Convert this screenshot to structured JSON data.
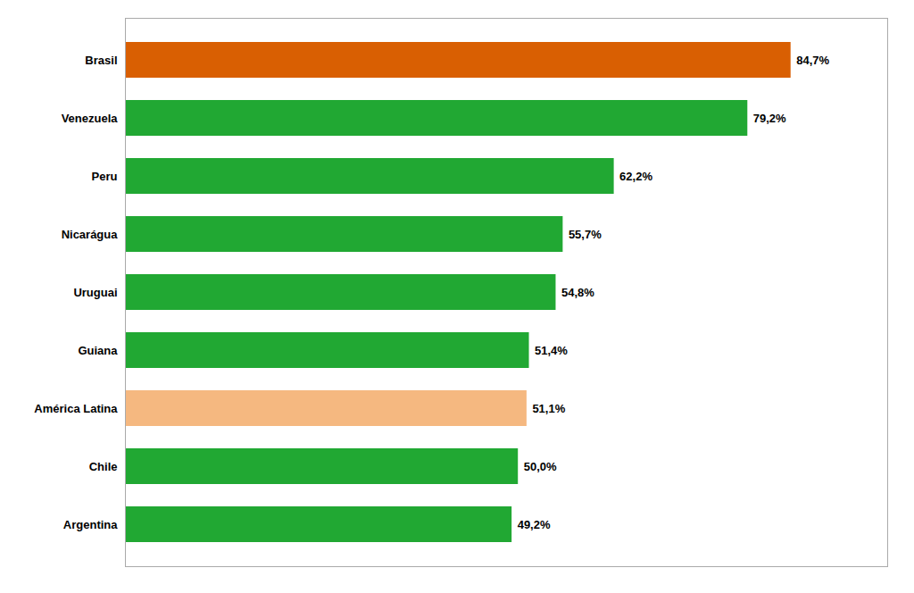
{
  "chart_data": {
    "type": "bar",
    "orientation": "horizontal",
    "categories": [
      "Argentina",
      "Chile",
      "América Latina",
      "Guiana",
      "Uruguai",
      "Nicarágua",
      "Peru",
      "Venezuela",
      "Brasil"
    ],
    "values": [
      49.2,
      50.0,
      51.1,
      51.4,
      54.8,
      55.7,
      62.2,
      79.2,
      84.7
    ],
    "value_labels": [
      "49,2%",
      "50,0%",
      "51,1%",
      "51,4%",
      "54,8%",
      "55,7%",
      "62,2%",
      "79,2%",
      "84,7%"
    ],
    "colors": [
      "#21a833",
      "#21a833",
      "#f5b880",
      "#21a833",
      "#21a833",
      "#21a833",
      "#21a833",
      "#21a833",
      "#d95f02"
    ],
    "xlim": [
      0,
      97
    ],
    "xticks": [],
    "data_labels": true,
    "tick_labels": "y",
    "grid": false
  }
}
